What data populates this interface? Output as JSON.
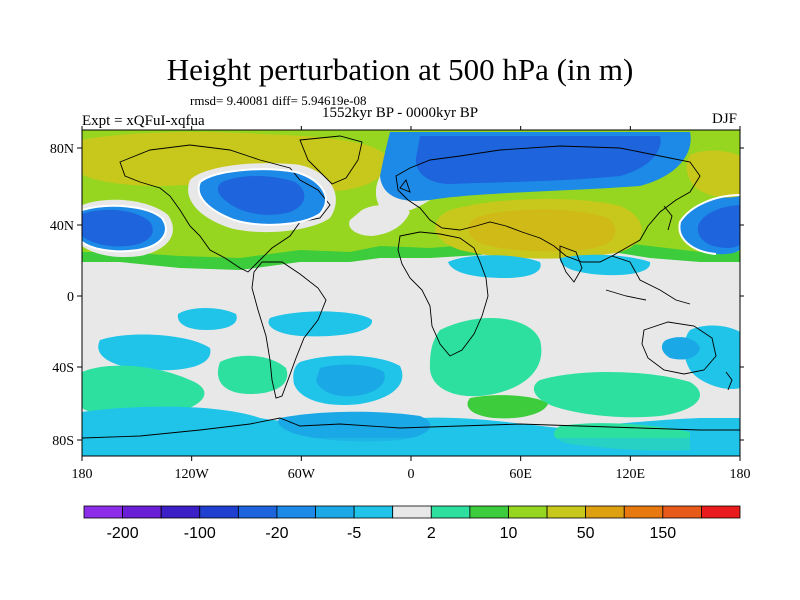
{
  "title": "Height perturbation at 500 hPa (in m)",
  "stats_line": "rmsd= 9.40081 diff= 5.94619e-08",
  "period": "1552kyr BP - 0000kyr BP",
  "experiment": "Expt = xQFuI-xqfua",
  "season": "DJF",
  "map": {
    "lon_ticks": [
      "180",
      "120W",
      "60W",
      "0",
      "60E",
      "120E",
      "180"
    ],
    "lat_ticks": [
      "80N",
      "40N",
      "0",
      "40S",
      "80S"
    ],
    "background_color": "#e8e8e8",
    "coast_color": "#000000"
  },
  "colorbar": {
    "colors": [
      "#8c2ee8",
      "#6a1fd6",
      "#3d1fc8",
      "#1f3fd0",
      "#1e64dd",
      "#1c8ae6",
      "#1aa8e6",
      "#1fc4e8",
      "#e8e8e8",
      "#2ee0a0",
      "#3ccc3c",
      "#96d620",
      "#c8c81c",
      "#dca010",
      "#e87810",
      "#e85a1a",
      "#e81c1c"
    ],
    "labels": [
      "-200",
      "-100",
      "-20",
      "-5",
      "2",
      "10",
      "50",
      "150"
    ]
  }
}
